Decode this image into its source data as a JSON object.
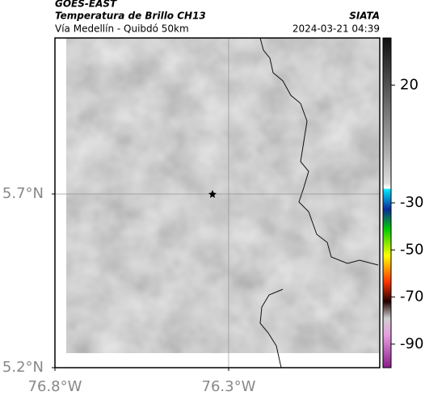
{
  "header": {
    "source": "GOES-EAST",
    "title": "Temperatura de Brillo CH13",
    "org": "SIATA",
    "subtitle": "Vía Medellín - Quibdó 50km",
    "timestamp": "2024-03-21 04:39"
  },
  "map": {
    "xlim": [
      -76.8,
      -75.865
    ],
    "ylim": [
      5.2,
      6.149
    ],
    "xticks": [
      {
        "value": -76.8,
        "label": "76.8°W"
      },
      {
        "value": -76.3,
        "label": "76.3°W"
      }
    ],
    "yticks": [
      {
        "value": 5.2,
        "label": "5.2°N"
      },
      {
        "value": 5.7,
        "label": "5.7°N"
      }
    ],
    "grid": true
  },
  "colorbar": {
    "lim": [
      40,
      -100
    ],
    "ticks": [
      20,
      -30,
      -50,
      -70,
      -90
    ]
  }
}
